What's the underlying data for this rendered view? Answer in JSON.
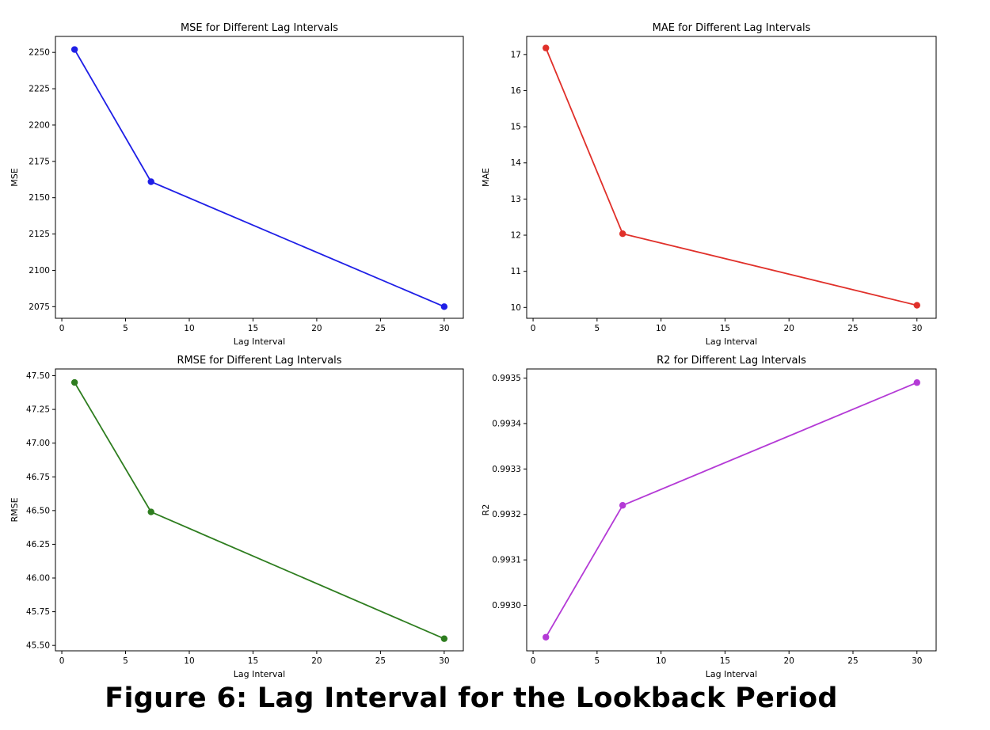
{
  "caption": "Figure 6: Lag Interval for the Lookback Period",
  "chart_data": [
    {
      "type": "line",
      "title": "MSE for Different Lag Intervals",
      "xlabel": "Lag Interval",
      "ylabel": "MSE",
      "color": "#1f1fe6",
      "x": [
        1,
        7,
        30
      ],
      "y": [
        2252,
        2161,
        2075
      ],
      "xlim": [
        -0.5,
        31.5
      ],
      "ylim": [
        2067,
        2261
      ],
      "xticks": [
        0,
        5,
        10,
        15,
        20,
        25,
        30
      ],
      "yticks": [
        2075,
        2100,
        2125,
        2150,
        2175,
        2200,
        2225,
        2250
      ],
      "yticklabels": [
        "2075",
        "2100",
        "2125",
        "2150",
        "2175",
        "2200",
        "2225",
        "2250"
      ]
    },
    {
      "type": "line",
      "title": "MAE for Different Lag Intervals",
      "xlabel": "Lag Interval",
      "ylabel": "MAE",
      "color": "#e0302a",
      "x": [
        1,
        7,
        30
      ],
      "y": [
        17.18,
        12.04,
        10.06
      ],
      "xlim": [
        -0.5,
        31.5
      ],
      "ylim": [
        9.7,
        17.5
      ],
      "xticks": [
        0,
        5,
        10,
        15,
        20,
        25,
        30
      ],
      "yticks": [
        10,
        11,
        12,
        13,
        14,
        15,
        16,
        17
      ],
      "yticklabels": [
        "10",
        "11",
        "12",
        "13",
        "14",
        "15",
        "16",
        "17"
      ]
    },
    {
      "type": "line",
      "title": "RMSE for Different Lag Intervals",
      "xlabel": "Lag Interval",
      "ylabel": "RMSE",
      "color": "#2e7d1f",
      "x": [
        1,
        7,
        30
      ],
      "y": [
        47.45,
        46.49,
        45.55
      ],
      "xlim": [
        -0.5,
        31.5
      ],
      "ylim": [
        45.46,
        47.55
      ],
      "xticks": [
        0,
        5,
        10,
        15,
        20,
        25,
        30
      ],
      "yticks": [
        45.5,
        45.75,
        46.0,
        46.25,
        46.5,
        46.75,
        47.0,
        47.25,
        47.5
      ],
      "yticklabels": [
        "45.50",
        "45.75",
        "46.00",
        "46.25",
        "46.50",
        "46.75",
        "47.00",
        "47.25",
        "47.50"
      ]
    },
    {
      "type": "line",
      "title": "R2 for Different Lag Intervals",
      "xlabel": "Lag Interval",
      "ylabel": "R2",
      "color": "#b43ad6",
      "x": [
        1,
        7,
        30
      ],
      "y": [
        0.99293,
        0.99322,
        0.99349
      ],
      "xlim": [
        -0.5,
        31.5
      ],
      "ylim": [
        0.9929,
        0.99352
      ],
      "xticks": [
        0,
        5,
        10,
        15,
        20,
        25,
        30
      ],
      "yticks": [
        0.993,
        0.9931,
        0.9932,
        0.9933,
        0.9934,
        0.9935
      ],
      "yticklabels": [
        "0.9930",
        "0.9931",
        "0.9932",
        "0.9933",
        "0.9934",
        "0.9935"
      ]
    }
  ]
}
